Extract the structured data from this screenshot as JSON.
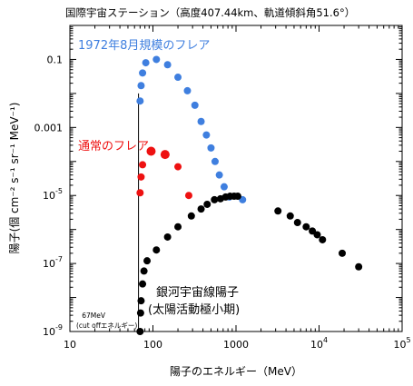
{
  "chart_data": {
    "type": "scatter",
    "title": "国際宇宙ステーション（高度407.44km、軌道傾斜角51.6°）",
    "xlabel": "陽子のエネルギー（MeV）",
    "ylabel": "陽子(個 cm⁻² s⁻¹ sr⁻¹ MeV⁻¹)",
    "x_scale": "log",
    "y_scale": "log",
    "xlim": [
      10,
      100000
    ],
    "ylim": [
      1e-09,
      1
    ],
    "x_ticks": [
      {
        "value": 10,
        "base": "10",
        "exp": ""
      },
      {
        "value": 100,
        "base": "100",
        "exp": ""
      },
      {
        "value": 1000,
        "base": "1000",
        "exp": ""
      },
      {
        "value": 10000,
        "base": "10",
        "exp": "4"
      },
      {
        "value": 100000,
        "base": "10",
        "exp": "5"
      }
    ],
    "y_ticks": [
      {
        "value": 1e-09,
        "base": "10",
        "exp": "-9"
      },
      {
        "value": 1e-07,
        "base": "10",
        "exp": "-7"
      },
      {
        "value": 1e-05,
        "base": "10",
        "exp": "-5"
      },
      {
        "value": 0.001,
        "base": "0.001",
        "exp": ""
      },
      {
        "value": 0.1,
        "base": "0.1",
        "exp": ""
      }
    ],
    "cutoff": {
      "x": 67,
      "label_line1": "67MeV",
      "label_line2": "(cut offエネルギー)"
    },
    "series": [
      {
        "name": "1972年8月規模のフレア",
        "color": "#3f7fdf",
        "points": [
          [
            70,
            0.006
          ],
          [
            72,
            0.017
          ],
          [
            75,
            0.04
          ],
          [
            82,
            0.08
          ],
          [
            110,
            0.1
          ],
          [
            150,
            0.07
          ],
          [
            200,
            0.03
          ],
          [
            260,
            0.012
          ],
          [
            320,
            0.0045
          ],
          [
            380,
            0.0015
          ],
          [
            440,
            0.0006
          ],
          [
            500,
            0.00025
          ],
          [
            560,
            0.0001
          ],
          [
            630,
            4e-05
          ],
          [
            720,
            1.8e-05
          ],
          [
            830,
            9e-06
          ],
          [
            1200,
            7.5e-06
          ]
        ]
      },
      {
        "name": "通常のフレア",
        "color": "#ee1111",
        "points": [
          [
            70,
            1.2e-05
          ],
          [
            72,
            3.5e-05
          ],
          [
            75,
            8e-05
          ],
          [
            95,
            0.0002
          ],
          [
            140,
            0.00016
          ],
          [
            200,
            7e-05
          ],
          [
            270,
            1e-05
          ]
        ]
      },
      {
        "name": "銀河宇宙線陽子",
        "name_line2": "(太陽活動極小期)",
        "color": "#000000",
        "points": [
          [
            70,
            1e-09
          ],
          [
            71,
            3.5e-09
          ],
          [
            72,
            8e-09
          ],
          [
            75,
            2.5e-08
          ],
          [
            78,
            6e-08
          ],
          [
            85,
            1.2e-07
          ],
          [
            110,
            2.5e-07
          ],
          [
            150,
            6e-07
          ],
          [
            200,
            1.2e-06
          ],
          [
            290,
            2.5e-06
          ],
          [
            380,
            4e-06
          ],
          [
            450,
            5.5e-06
          ],
          [
            550,
            7.5e-06
          ],
          [
            650,
            8e-06
          ],
          [
            750,
            9e-06
          ],
          [
            850,
            9.5e-06
          ],
          [
            950,
            9.5e-06
          ],
          [
            1050,
            9.5e-06
          ],
          [
            3200,
            3.5e-06
          ],
          [
            4500,
            2.5e-06
          ],
          [
            5500,
            1.6e-06
          ],
          [
            7000,
            1.2e-06
          ],
          [
            8300,
            9e-07
          ],
          [
            9500,
            7e-07
          ],
          [
            11000,
            5e-07
          ],
          [
            19000,
            2e-07
          ],
          [
            30000,
            8e-08
          ]
        ]
      }
    ]
  }
}
